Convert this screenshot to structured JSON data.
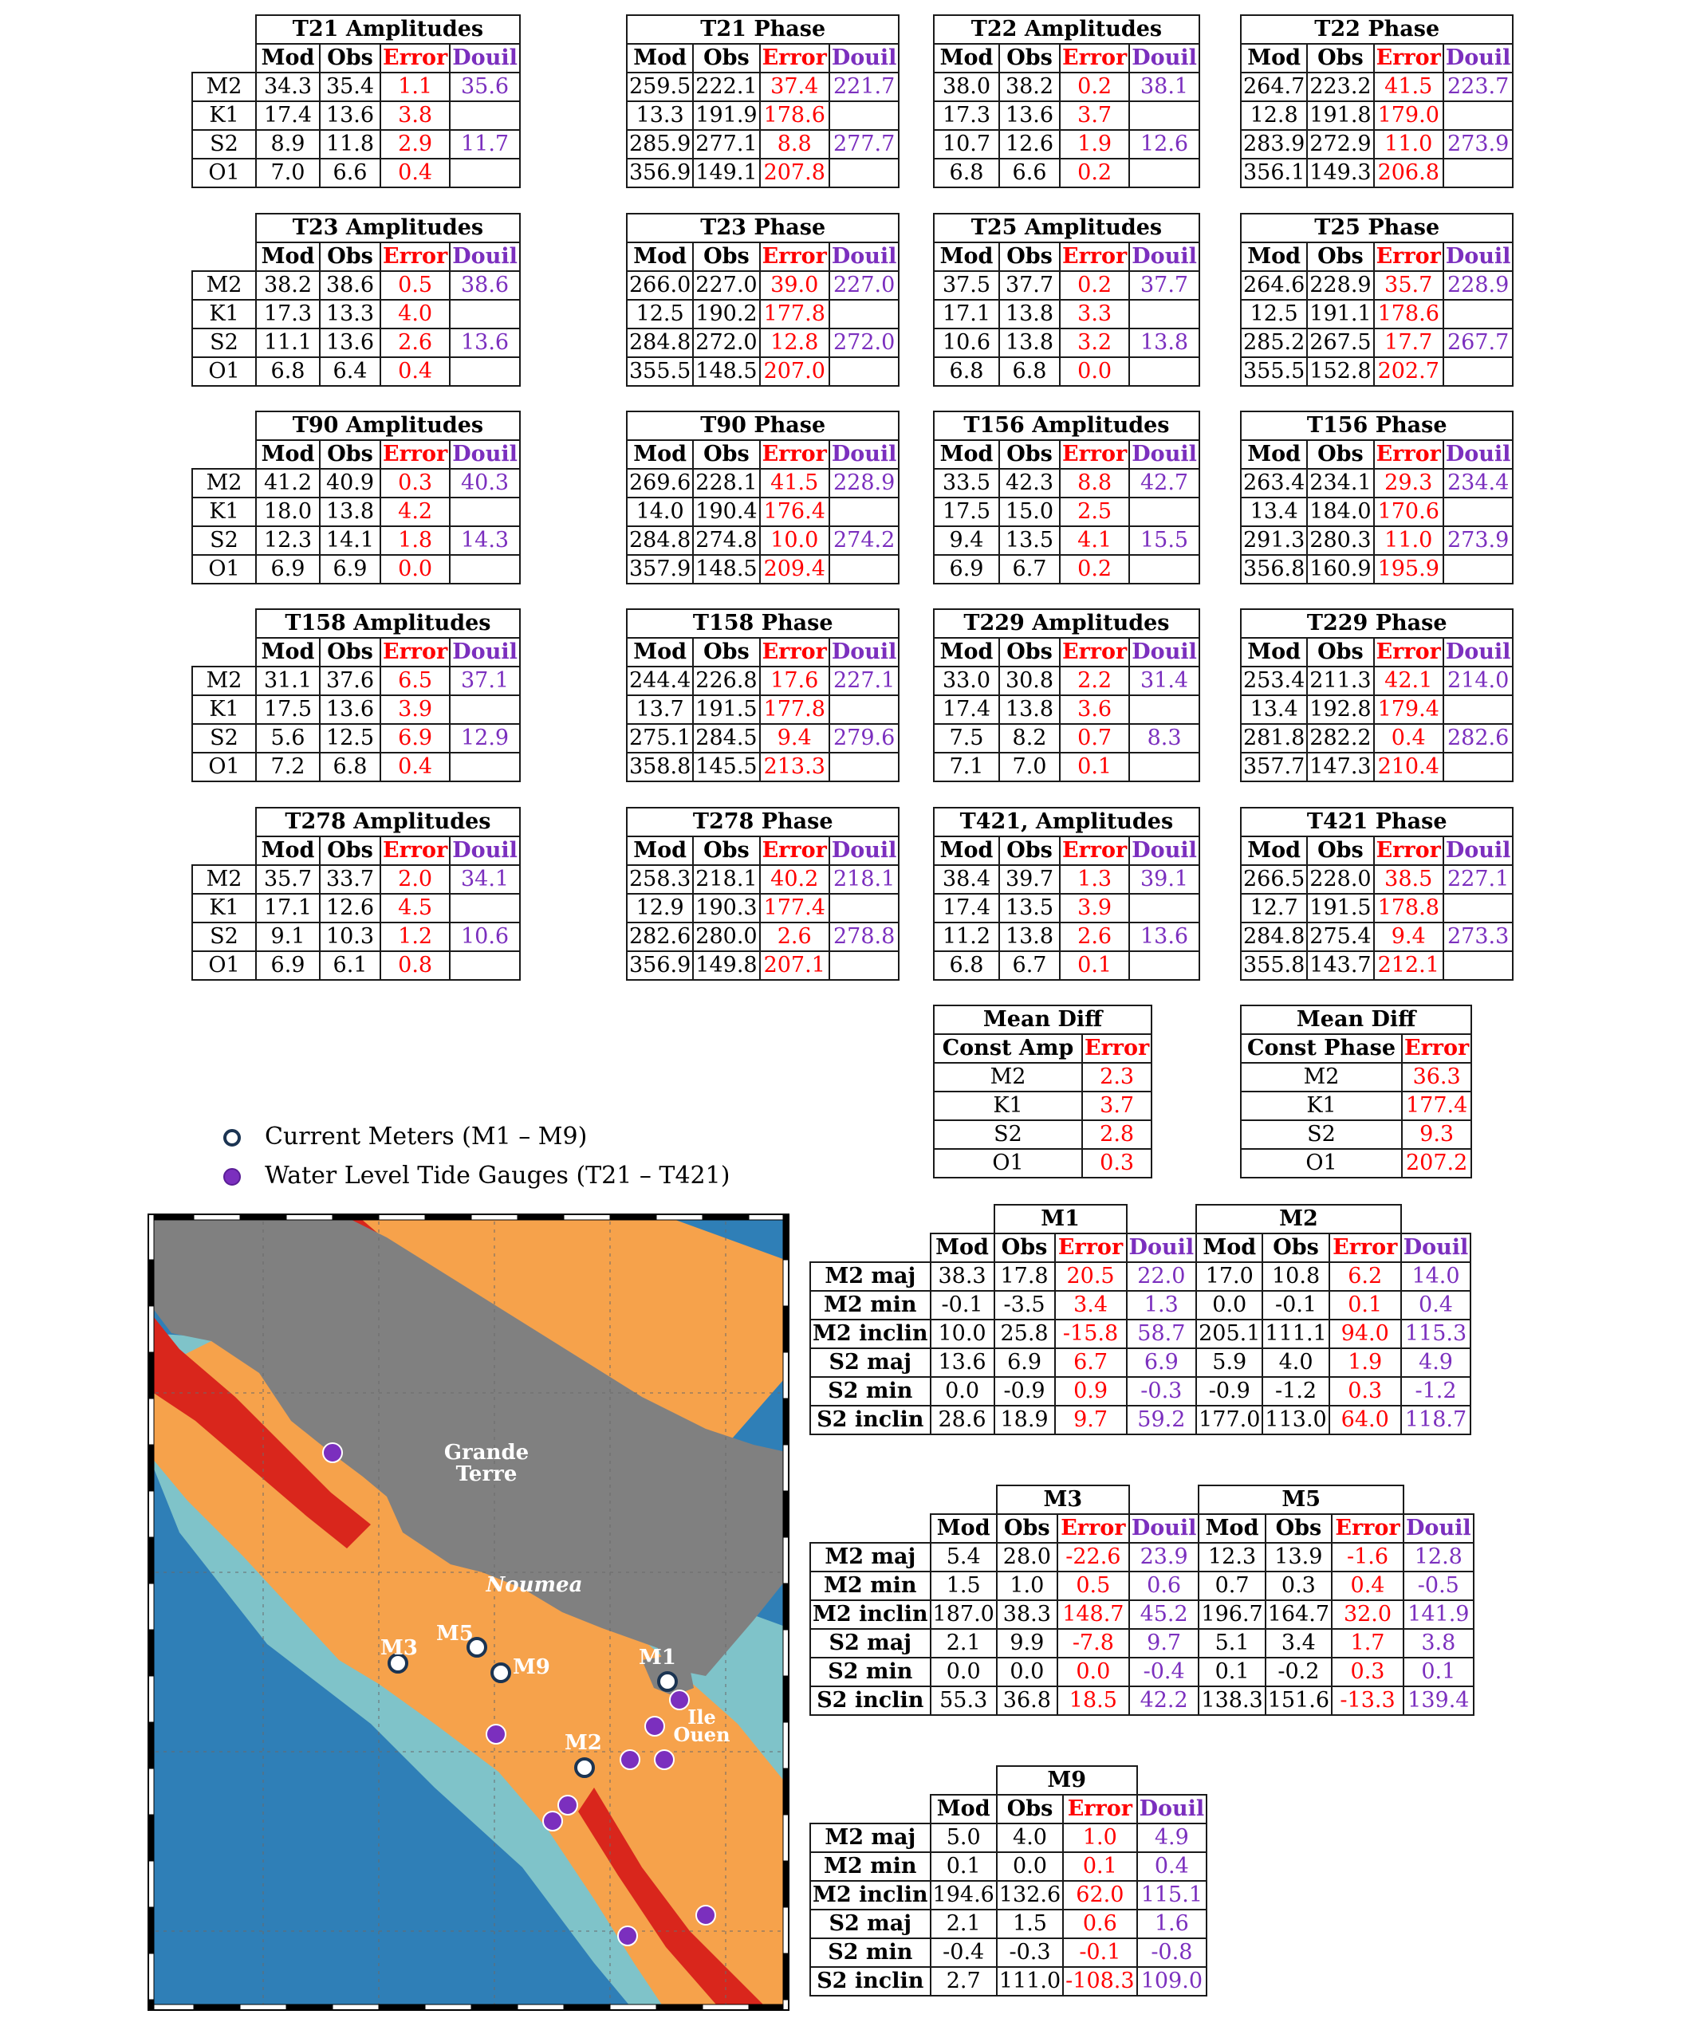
{
  "labels": {
    "mod": "Mod",
    "obs": "Obs",
    "error": "Error",
    "douil": "Douil"
  },
  "constituents": [
    "M2",
    "K1",
    "S2",
    "O1"
  ],
  "tide_grid": [
    {
      "gauges": [
        {
          "title": "T21 Amplitudes",
          "rows": [
            [
              "34.3",
              "35.4",
              "1.1",
              "35.6"
            ],
            [
              "17.4",
              "13.6",
              "3.8",
              ""
            ],
            [
              "8.9",
              "11.8",
              "2.9",
              "11.7"
            ],
            [
              "7.0",
              "6.6",
              "0.4",
              ""
            ]
          ]
        },
        {
          "title": "T21 Phase",
          "rows": [
            [
              "259.5",
              "222.1",
              "37.4",
              "221.7"
            ],
            [
              "13.3",
              "191.9",
              "178.6",
              ""
            ],
            [
              "285.9",
              "277.1",
              "8.8",
              "277.7"
            ],
            [
              "356.9",
              "149.1",
              "207.8",
              ""
            ]
          ]
        },
        {
          "title": "T22 Amplitudes",
          "rows": [
            [
              "38.0",
              "38.2",
              "0.2",
              "38.1"
            ],
            [
              "17.3",
              "13.6",
              "3.7",
              ""
            ],
            [
              "10.7",
              "12.6",
              "1.9",
              "12.6"
            ],
            [
              "6.8",
              "6.6",
              "0.2",
              ""
            ]
          ]
        },
        {
          "title": "T22 Phase",
          "rows": [
            [
              "264.7",
              "223.2",
              "41.5",
              "223.7"
            ],
            [
              "12.8",
              "191.8",
              "179.0",
              ""
            ],
            [
              "283.9",
              "272.9",
              "11.0",
              "273.9"
            ],
            [
              "356.1",
              "149.3",
              "206.8",
              ""
            ]
          ]
        }
      ]
    },
    {
      "gauges": [
        {
          "title": "T23 Amplitudes",
          "rows": [
            [
              "38.2",
              "38.6",
              "0.5",
              "38.6"
            ],
            [
              "17.3",
              "13.3",
              "4.0",
              ""
            ],
            [
              "11.1",
              "13.6",
              "2.6",
              "13.6"
            ],
            [
              "6.8",
              "6.4",
              "0.4",
              ""
            ]
          ]
        },
        {
          "title": "T23 Phase",
          "rows": [
            [
              "266.0",
              "227.0",
              "39.0",
              "227.0"
            ],
            [
              "12.5",
              "190.2",
              "177.8",
              ""
            ],
            [
              "284.8",
              "272.0",
              "12.8",
              "272.0"
            ],
            [
              "355.5",
              "148.5",
              "207.0",
              ""
            ]
          ]
        },
        {
          "title": "T25 Amplitudes",
          "rows": [
            [
              "37.5",
              "37.7",
              "0.2",
              "37.7"
            ],
            [
              "17.1",
              "13.8",
              "3.3",
              ""
            ],
            [
              "10.6",
              "13.8",
              "3.2",
              "13.8"
            ],
            [
              "6.8",
              "6.8",
              "0.0",
              ""
            ]
          ]
        },
        {
          "title": "T25 Phase",
          "rows": [
            [
              "264.6",
              "228.9",
              "35.7",
              "228.9"
            ],
            [
              "12.5",
              "191.1",
              "178.6",
              ""
            ],
            [
              "285.2",
              "267.5",
              "17.7",
              "267.7"
            ],
            [
              "355.5",
              "152.8",
              "202.7",
              ""
            ]
          ]
        }
      ]
    },
    {
      "gauges": [
        {
          "title": "T90 Amplitudes",
          "rows": [
            [
              "41.2",
              "40.9",
              "0.3",
              "40.3"
            ],
            [
              "18.0",
              "13.8",
              "4.2",
              ""
            ],
            [
              "12.3",
              "14.1",
              "1.8",
              "14.3"
            ],
            [
              "6.9",
              "6.9",
              "0.0",
              ""
            ]
          ]
        },
        {
          "title": "T90 Phase",
          "rows": [
            [
              "269.6",
              "228.1",
              "41.5",
              "228.9"
            ],
            [
              "14.0",
              "190.4",
              "176.4",
              ""
            ],
            [
              "284.8",
              "274.8",
              "10.0",
              "274.2"
            ],
            [
              "357.9",
              "148.5",
              "209.4",
              ""
            ]
          ]
        },
        {
          "title": "T156 Amplitudes",
          "rows": [
            [
              "33.5",
              "42.3",
              "8.8",
              "42.7"
            ],
            [
              "17.5",
              "15.0",
              "2.5",
              ""
            ],
            [
              "9.4",
              "13.5",
              "4.1",
              "15.5"
            ],
            [
              "6.9",
              "6.7",
              "0.2",
              ""
            ]
          ]
        },
        {
          "title": "T156 Phase",
          "rows": [
            [
              "263.4",
              "234.1",
              "29.3",
              "234.4"
            ],
            [
              "13.4",
              "184.0",
              "170.6",
              ""
            ],
            [
              "291.3",
              "280.3",
              "11.0",
              "273.9"
            ],
            [
              "356.8",
              "160.9",
              "195.9",
              ""
            ]
          ]
        }
      ]
    },
    {
      "gauges": [
        {
          "title": "T158 Amplitudes",
          "rows": [
            [
              "31.1",
              "37.6",
              "6.5",
              "37.1"
            ],
            [
              "17.5",
              "13.6",
              "3.9",
              ""
            ],
            [
              "5.6",
              "12.5",
              "6.9",
              "12.9"
            ],
            [
              "7.2",
              "6.8",
              "0.4",
              ""
            ]
          ]
        },
        {
          "title": "T158 Phase",
          "rows": [
            [
              "244.4",
              "226.8",
              "17.6",
              "227.1"
            ],
            [
              "13.7",
              "191.5",
              "177.8",
              ""
            ],
            [
              "275.1",
              "284.5",
              "9.4",
              "279.6"
            ],
            [
              "358.8",
              "145.5",
              "213.3",
              ""
            ]
          ]
        },
        {
          "title": "T229 Amplitudes",
          "rows": [
            [
              "33.0",
              "30.8",
              "2.2",
              "31.4"
            ],
            [
              "17.4",
              "13.8",
              "3.6",
              ""
            ],
            [
              "7.5",
              "8.2",
              "0.7",
              "8.3"
            ],
            [
              "7.1",
              "7.0",
              "0.1",
              ""
            ]
          ]
        },
        {
          "title": "T229 Phase",
          "rows": [
            [
              "253.4",
              "211.3",
              "42.1",
              "214.0"
            ],
            [
              "13.4",
              "192.8",
              "179.4",
              ""
            ],
            [
              "281.8",
              "282.2",
              "0.4",
              "282.6"
            ],
            [
              "357.7",
              "147.3",
              "210.4",
              ""
            ]
          ]
        }
      ]
    },
    {
      "gauges": [
        {
          "title": "T278 Amplitudes",
          "rows": [
            [
              "35.7",
              "33.7",
              "2.0",
              "34.1"
            ],
            [
              "17.1",
              "12.6",
              "4.5",
              ""
            ],
            [
              "9.1",
              "10.3",
              "1.2",
              "10.6"
            ],
            [
              "6.9",
              "6.1",
              "0.8",
              ""
            ]
          ]
        },
        {
          "title": "T278 Phase",
          "rows": [
            [
              "258.3",
              "218.1",
              "40.2",
              "218.1"
            ],
            [
              "12.9",
              "190.3",
              "177.4",
              ""
            ],
            [
              "282.6",
              "280.0",
              "2.6",
              "278.8"
            ],
            [
              "356.9",
              "149.8",
              "207.1",
              ""
            ]
          ]
        },
        {
          "title": "T421, Amplitudes",
          "rows": [
            [
              "38.4",
              "39.7",
              "1.3",
              "39.1"
            ],
            [
              "17.4",
              "13.5",
              "3.9",
              ""
            ],
            [
              "11.2",
              "13.8",
              "2.6",
              "13.6"
            ],
            [
              "6.8",
              "6.7",
              "0.1",
              ""
            ]
          ]
        },
        {
          "title": "T421 Phase",
          "rows": [
            [
              "266.5",
              "228.0",
              "38.5",
              "227.1"
            ],
            [
              "12.7",
              "191.5",
              "178.8",
              ""
            ],
            [
              "284.8",
              "275.4",
              "9.4",
              "273.3"
            ],
            [
              "355.8",
              "143.7",
              "212.1",
              ""
            ]
          ]
        }
      ]
    }
  ],
  "mean_diff": [
    {
      "title": "Mean Diff",
      "col1": "Const Amp",
      "col2": "Error",
      "rows": [
        [
          "M2",
          "2.3"
        ],
        [
          "K1",
          "3.7"
        ],
        [
          "S2",
          "2.8"
        ],
        [
          "O1",
          "0.3"
        ]
      ]
    },
    {
      "title": "Mean Diff",
      "col1": "Const Phase",
      "col2": "Error",
      "rows": [
        [
          "M2",
          "36.3"
        ],
        [
          "K1",
          "177.4"
        ],
        [
          "S2",
          "9.3"
        ],
        [
          "O1",
          "207.2"
        ]
      ]
    }
  ],
  "current_labels": [
    "M2 maj",
    "M2 min",
    "M2 inclin",
    "S2 maj",
    "S2 min",
    "S2 inclin"
  ],
  "current_blocks": [
    {
      "meters": [
        {
          "title": "M1",
          "rows": [
            [
              "38.3",
              "17.8",
              "20.5",
              "22.0"
            ],
            [
              "-0.1",
              "-3.5",
              "3.4",
              "1.3"
            ],
            [
              "10.0",
              "25.8",
              "-15.8",
              "58.7"
            ],
            [
              "13.6",
              "6.9",
              "6.7",
              "6.9"
            ],
            [
              "0.0",
              "-0.9",
              "0.9",
              "-0.3"
            ],
            [
              "28.6",
              "18.9",
              "9.7",
              "59.2"
            ]
          ]
        },
        {
          "title": "M2",
          "rows": [
            [
              "17.0",
              "10.8",
              "6.2",
              "14.0"
            ],
            [
              "0.0",
              "-0.1",
              "0.1",
              "0.4"
            ],
            [
              "205.1",
              "111.1",
              "94.0",
              "115.3"
            ],
            [
              "5.9",
              "4.0",
              "1.9",
              "4.9"
            ],
            [
              "-0.9",
              "-1.2",
              "0.3",
              "-1.2"
            ],
            [
              "177.0",
              "113.0",
              "64.0",
              "118.7"
            ]
          ]
        }
      ]
    },
    {
      "meters": [
        {
          "title": "M3",
          "rows": [
            [
              "5.4",
              "28.0",
              "-22.6",
              "23.9"
            ],
            [
              "1.5",
              "1.0",
              "0.5",
              "0.6"
            ],
            [
              "187.0",
              "38.3",
              "148.7",
              "45.2"
            ],
            [
              "2.1",
              "9.9",
              "-7.8",
              "9.7"
            ],
            [
              "0.0",
              "0.0",
              "0.0",
              "-0.4"
            ],
            [
              "55.3",
              "36.8",
              "18.5",
              "42.2"
            ]
          ]
        },
        {
          "title": "M5",
          "rows": [
            [
              "12.3",
              "13.9",
              "-1.6",
              "12.8"
            ],
            [
              "0.7",
              "0.3",
              "0.4",
              "-0.5"
            ],
            [
              "196.7",
              "164.7",
              "32.0",
              "141.9"
            ],
            [
              "5.1",
              "3.4",
              "1.7",
              "3.8"
            ],
            [
              "0.1",
              "-0.2",
              "0.3",
              "0.1"
            ],
            [
              "138.3",
              "151.6",
              "-13.3",
              "139.4"
            ]
          ]
        }
      ]
    },
    {
      "meters": [
        {
          "title": "M9",
          "rows": [
            [
              "5.0",
              "4.0",
              "1.0",
              "4.9"
            ],
            [
              "0.1",
              "0.0",
              "0.1",
              "0.4"
            ],
            [
              "194.6",
              "132.6",
              "62.0",
              "115.1"
            ],
            [
              "2.1",
              "1.5",
              "0.6",
              "1.6"
            ],
            [
              "-0.4",
              "-0.3",
              "-0.1",
              "-0.8"
            ],
            [
              "2.7",
              "111.0",
              "-108.3",
              "109.0"
            ]
          ]
        }
      ]
    }
  ],
  "legend": {
    "current": "Current Meters (M1 – M9)",
    "gauge": "Water Level Tide Gauges (T21 – T421)"
  },
  "map": {
    "labels": {
      "grande_terre": [
        "Grande",
        "Terre"
      ],
      "noumea": "Noumea",
      "ile": [
        "Ile",
        "Ouen"
      ]
    },
    "meters": [
      "M1",
      "M2",
      "M3",
      "M5",
      "M9"
    ],
    "colors": {
      "land": "#808080",
      "deep": "#2f7fb7",
      "mid": "#7fc3c9",
      "shelf": "#f6a24b",
      "reef": "#d9261c",
      "meter_edge": "#1b3452",
      "gauge": "#7b2fbe"
    }
  }
}
